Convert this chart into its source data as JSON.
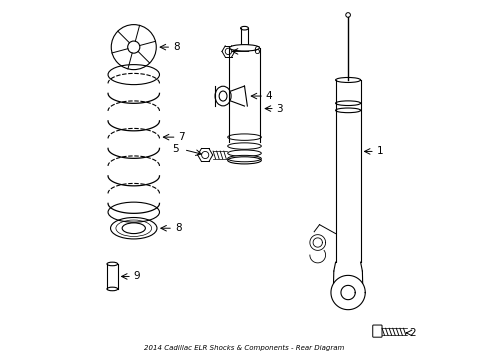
{
  "title": "2014 Cadillac ELR Shocks & Components - Rear Diagram",
  "bg_color": "#ffffff",
  "line_color": "#000000",
  "label_color": "#000000",
  "figsize": [
    4.89,
    3.6
  ],
  "dpi": 100,
  "parts": [
    {
      "id": "1",
      "label": "1"
    },
    {
      "id": "2",
      "label": "2"
    },
    {
      "id": "3",
      "label": "3"
    },
    {
      "id": "4",
      "label": "4"
    },
    {
      "id": "5",
      "label": "5"
    },
    {
      "id": "6",
      "label": "6"
    },
    {
      "id": "7",
      "label": "7"
    },
    {
      "id": "8a",
      "label": "8"
    },
    {
      "id": "8b",
      "label": "8"
    },
    {
      "id": "9",
      "label": "9"
    }
  ]
}
